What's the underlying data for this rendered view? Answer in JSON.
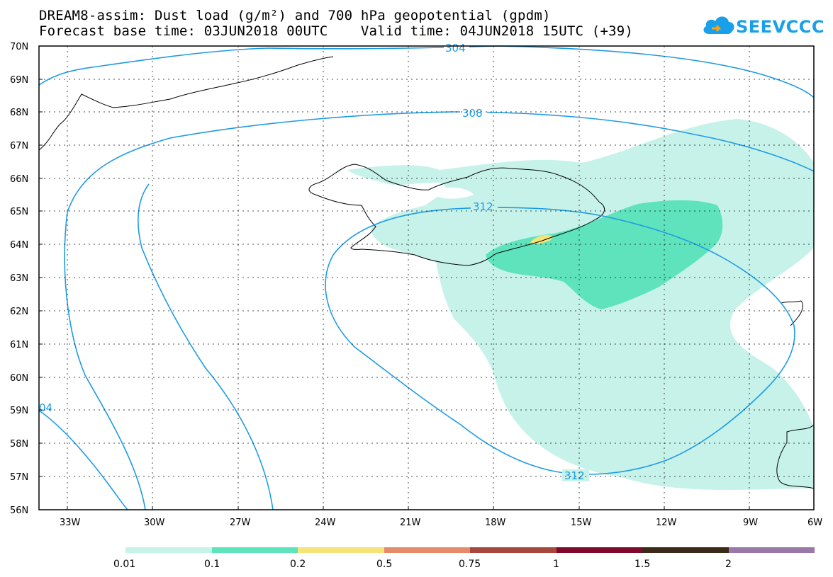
{
  "title": {
    "line1": "DREAM8-assim: Dust load (g/m²) and 700 hPa geopotential (gpdm)",
    "line2": "Forecast base time: 03JUN2018 00UTC    Valid time: 04JUN2018 15UTC (+39)"
  },
  "logo": {
    "text": "SEEVCCC",
    "color": "#1aa0e8"
  },
  "map": {
    "lat_labels": [
      "70N",
      "69N",
      "68N",
      "67N",
      "66N",
      "65N",
      "64N",
      "63N",
      "62N",
      "61N",
      "60N",
      "59N",
      "58N",
      "57N",
      "56N"
    ],
    "lon_labels": [
      "33W",
      "30W",
      "27W",
      "24W",
      "21W",
      "18W",
      "15W",
      "12W",
      "9W",
      "6W"
    ],
    "contour_labels": [
      "304",
      "308",
      "312",
      "312",
      "04"
    ],
    "contour_color": "#1e9be6"
  },
  "legend": {
    "levels": [
      "0.01",
      "0.1",
      "0.2",
      "0.5",
      "0.75",
      "1",
      "1.5",
      "2"
    ],
    "colors": [
      "#c7f2ea",
      "#5fe3bd",
      "#f5e47a",
      "#e68b6a",
      "#a8473e",
      "#7e0a2b",
      "#3b2a18",
      "#9b78a8"
    ]
  }
}
